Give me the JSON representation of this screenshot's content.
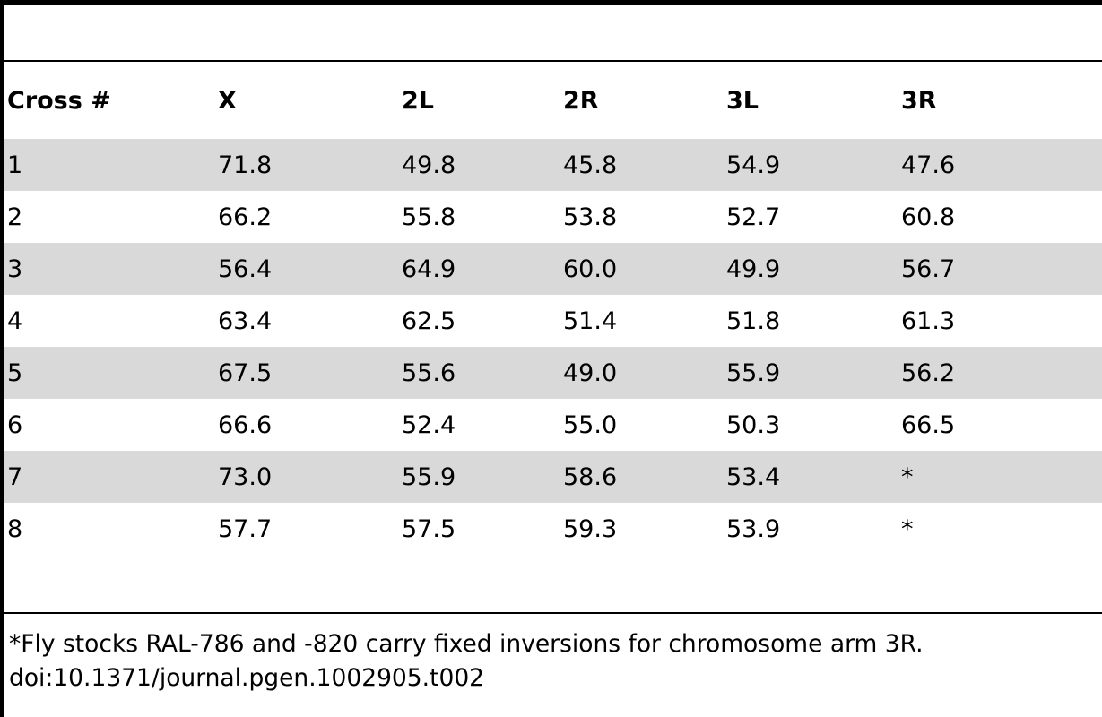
{
  "table": {
    "columns": [
      "Cross #",
      "X",
      "2L",
      "2R",
      "3L",
      "3R"
    ],
    "rows": [
      [
        "1",
        "71.8",
        "49.8",
        "45.8",
        "54.9",
        "47.6"
      ],
      [
        "2",
        "66.2",
        "55.8",
        "53.8",
        "52.7",
        "60.8"
      ],
      [
        "3",
        "56.4",
        "64.9",
        "60.0",
        "49.9",
        "56.7"
      ],
      [
        "4",
        "63.4",
        "62.5",
        "51.4",
        "51.8",
        "61.3"
      ],
      [
        "5",
        "67.5",
        "55.6",
        "49.0",
        "55.9",
        "56.2"
      ],
      [
        "6",
        "66.6",
        "52.4",
        "55.0",
        "50.3",
        "66.5"
      ],
      [
        "7",
        "73.0",
        "55.9",
        "58.6",
        "53.4",
        "*"
      ],
      [
        "8",
        "57.7",
        "57.5",
        "59.3",
        "53.9",
        "*"
      ]
    ]
  },
  "footnote": {
    "line1": "*Fly stocks RAL-786 and -820 carry fixed inversions for chromosome arm 3R.",
    "line2": "doi:10.1371/journal.pgen.1002905.t002"
  }
}
